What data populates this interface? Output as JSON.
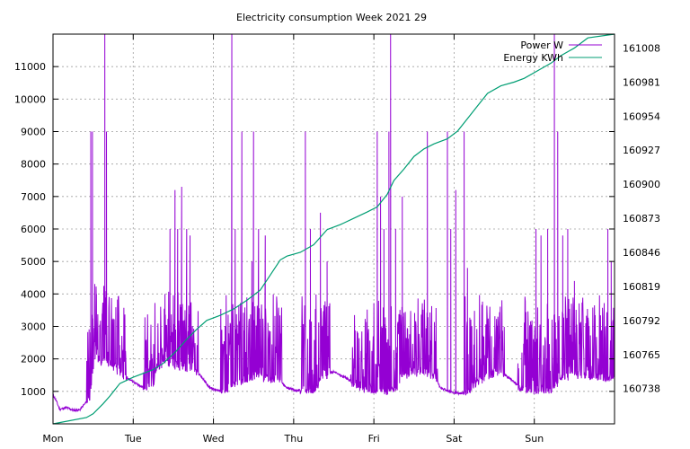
{
  "chart_data": {
    "type": "line",
    "title": "Electricity consumption Week 2021 29",
    "xlabel": "",
    "ylabel": "",
    "x_categories": [
      "Mon",
      "Tue",
      "Wed",
      "Thu",
      "Fri",
      "Sat",
      "Sun"
    ],
    "x_unit": "hours since Monday 00:00",
    "xlim": [
      0,
      168
    ],
    "grid": true,
    "legend_position": "top-right",
    "y_left": {
      "series": "Power W",
      "ylim": [
        0,
        12000
      ],
      "ticks": [
        1000,
        2000,
        3000,
        4000,
        5000,
        6000,
        7000,
        8000,
        9000,
        10000,
        11000
      ]
    },
    "y_right": {
      "series": "Energy KWh",
      "ylim": [
        160710,
        161019
      ],
      "ticks": [
        160738,
        160765,
        160792,
        160819,
        160846,
        160873,
        160900,
        160927,
        160954,
        160981,
        161008
      ]
    },
    "series": [
      {
        "name": "Power W",
        "axis": "left",
        "color": "#9400d3",
        "baseline": [
          [
            0,
            900
          ],
          [
            1,
            700
          ],
          [
            2,
            450
          ],
          [
            4,
            500
          ],
          [
            6,
            420
          ],
          [
            8,
            430
          ],
          [
            11,
            800
          ],
          [
            12.5,
            2200
          ],
          [
            14,
            2000
          ],
          [
            17,
            1900
          ],
          [
            19,
            1700
          ],
          [
            21,
            1500
          ],
          [
            24,
            1300
          ],
          [
            26,
            1150
          ],
          [
            28,
            1100
          ],
          [
            30,
            1200
          ],
          [
            31,
            1700
          ],
          [
            34,
            1900
          ],
          [
            38,
            1800
          ],
          [
            42,
            1700
          ],
          [
            44,
            1500
          ],
          [
            47,
            1100
          ],
          [
            50,
            1000
          ],
          [
            53,
            1100
          ],
          [
            56,
            1300
          ],
          [
            60,
            1500
          ],
          [
            64,
            1400
          ],
          [
            67,
            1400
          ],
          [
            68,
            1300
          ],
          [
            70,
            1100
          ],
          [
            72,
            1050
          ],
          [
            76,
            1000
          ],
          [
            79,
            1050
          ],
          [
            80,
            1500
          ],
          [
            84,
            1600
          ],
          [
            88,
            1400
          ],
          [
            90,
            1200
          ],
          [
            92,
            1050
          ],
          [
            96,
            1000
          ],
          [
            100,
            980
          ],
          [
            103,
            1100
          ],
          [
            104,
            1500
          ],
          [
            110,
            1600
          ],
          [
            114,
            1500
          ],
          [
            116,
            1100
          ],
          [
            120,
            950
          ],
          [
            124,
            950
          ],
          [
            126,
            1200
          ],
          [
            130,
            1500
          ],
          [
            134,
            1600
          ],
          [
            138,
            1300
          ],
          [
            140,
            1050
          ],
          [
            144,
            1000
          ],
          [
            148,
            1000
          ],
          [
            150,
            1100
          ],
          [
            152,
            1400
          ],
          [
            156,
            1500
          ],
          [
            160,
            1500
          ],
          [
            164,
            1450
          ],
          [
            168,
            1400
          ]
        ],
        "active_periods": [
          [
            10,
            22
          ],
          [
            27,
            43.5
          ],
          [
            50,
            60
          ],
          [
            54.5,
            68.5
          ],
          [
            74,
            83
          ],
          [
            89,
            104
          ],
          [
            104,
            115
          ],
          [
            123,
            135
          ],
          [
            139,
            168
          ]
        ],
        "spikes": [
          [
            11.3,
            9000
          ],
          [
            11.8,
            9000
          ],
          [
            13,
            4000
          ],
          [
            15.5,
            12000
          ],
          [
            16,
            9000
          ],
          [
            33.5,
            4000
          ],
          [
            35,
            6000
          ],
          [
            36.5,
            7200
          ],
          [
            37.3,
            6000
          ],
          [
            38.5,
            7300
          ],
          [
            40,
            6000
          ],
          [
            41,
            5800
          ],
          [
            53.5,
            12000
          ],
          [
            54.5,
            6000
          ],
          [
            56.5,
            9000
          ],
          [
            59.5,
            5000
          ],
          [
            60,
            9000
          ],
          [
            61.5,
            6000
          ],
          [
            63.5,
            5800
          ],
          [
            75.5,
            9000
          ],
          [
            77,
            6000
          ],
          [
            80,
            6500
          ],
          [
            82,
            5000
          ],
          [
            97,
            9000
          ],
          [
            98,
            7000
          ],
          [
            99,
            6000
          ],
          [
            100.5,
            9000
          ],
          [
            101,
            12000
          ],
          [
            102.5,
            6000
          ],
          [
            104.5,
            7000
          ],
          [
            112,
            9000
          ],
          [
            118,
            9000
          ],
          [
            119,
            6000
          ],
          [
            120.5,
            7200
          ],
          [
            123,
            9000
          ],
          [
            124,
            4800
          ],
          [
            144.5,
            6000
          ],
          [
            146,
            5800
          ],
          [
            148,
            6000
          ],
          [
            150,
            12000
          ],
          [
            151,
            9000
          ],
          [
            152.5,
            5800
          ],
          [
            154,
            6000
          ],
          [
            156,
            4400
          ],
          [
            166,
            6000
          ],
          [
            167,
            5000
          ]
        ]
      },
      {
        "name": "Energy KWh",
        "axis": "right",
        "color": "#009e73",
        "points": [
          [
            0,
            160710
          ],
          [
            10,
            160715
          ],
          [
            12,
            160718
          ],
          [
            15,
            160726
          ],
          [
            17,
            160732
          ],
          [
            20,
            160742
          ],
          [
            24,
            160747
          ],
          [
            30,
            160753
          ],
          [
            33,
            160758
          ],
          [
            37,
            160768
          ],
          [
            40,
            160777
          ],
          [
            43,
            160785
          ],
          [
            46,
            160792
          ],
          [
            50,
            160796
          ],
          [
            54,
            160801
          ],
          [
            58,
            160808
          ],
          [
            62,
            160816
          ],
          [
            65,
            160828
          ],
          [
            68,
            160840
          ],
          [
            70,
            160843
          ],
          [
            74,
            160846
          ],
          [
            78,
            160852
          ],
          [
            82,
            160864
          ],
          [
            86,
            160868
          ],
          [
            90,
            160873
          ],
          [
            94,
            160878
          ],
          [
            97,
            160882
          ],
          [
            100,
            160892
          ],
          [
            102,
            160903
          ],
          [
            105,
            160912
          ],
          [
            108,
            160922
          ],
          [
            111,
            160928
          ],
          [
            114,
            160932
          ],
          [
            118,
            160936
          ],
          [
            121,
            160942
          ],
          [
            124,
            160952
          ],
          [
            127,
            160962
          ],
          [
            130,
            160972
          ],
          [
            134,
            160978
          ],
          [
            138,
            160981
          ],
          [
            141,
            160984
          ],
          [
            145,
            160990
          ],
          [
            149,
            160996
          ],
          [
            152,
            161002
          ],
          [
            156,
            161008
          ],
          [
            160,
            161016
          ],
          [
            168,
            161019
          ]
        ]
      }
    ]
  }
}
